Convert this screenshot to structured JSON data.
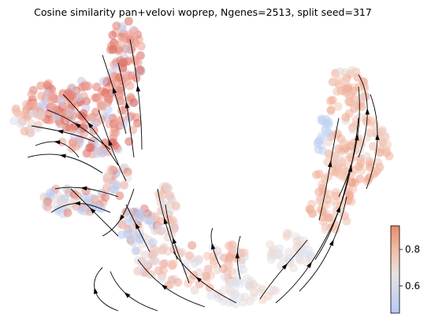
{
  "title": "Cosine similarity pan+velovi woprep, Ngenes=2513, split seed=317",
  "chart_data": {
    "type": "scatter",
    "subtype": "embedding scatter with velocity stream plot",
    "title": "Cosine similarity pan+velovi woprep, Ngenes=2513, split seed=317",
    "xlabel": "",
    "ylabel": "",
    "axes_visible": false,
    "grid": false,
    "colormap": "coolwarm",
    "colorbar": {
      "position": "right",
      "vmin": 0.45,
      "vmax": 0.93,
      "ticks": [
        0.6,
        0.8
      ],
      "tick_labels": [
        "0.6",
        "0.8"
      ]
    },
    "colors": {
      "low": "#3b4cc0",
      "mid": "#dddddd",
      "high": "#b40426"
    }
  }
}
